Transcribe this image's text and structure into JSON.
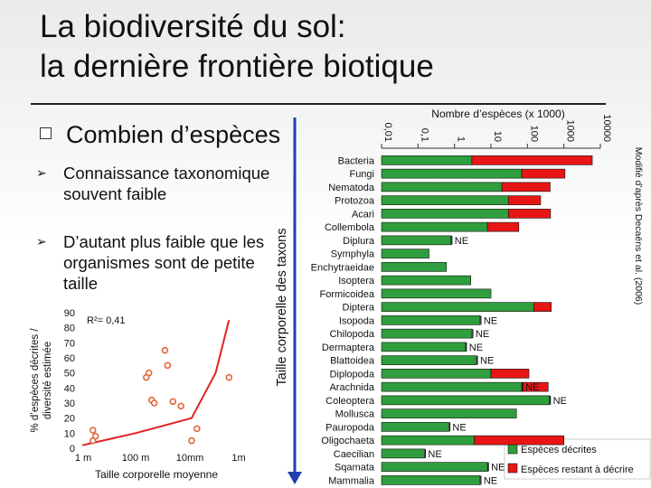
{
  "slide": {
    "title_line1": "La biodiversité du sol:",
    "title_line2": "la dernière frontière biotique",
    "main_bullet": "Combien d’espèces",
    "sub_bullets": [
      {
        "text": "Connaissance taxonomique souvent faible"
      },
      {
        "text": "D’autant plus faible que les organismes sont de petite taille"
      }
    ]
  },
  "chart_data": [
    {
      "type": "scatter",
      "ylabel_line1": "% d’espèces décrites /",
      "ylabel_line2": "diversité estimée",
      "xlabel": "Taille corporelle moyenne",
      "annotation": "R²= 0,41",
      "x_ticks": [
        "1 m",
        "100 m",
        "10mm",
        "1m"
      ],
      "y_ticks": [
        "90",
        "80",
        "70",
        "60",
        "50",
        "40",
        "30",
        "20",
        "10",
        "0"
      ],
      "ylim": [
        0,
        90
      ],
      "points": [
        [
          -0.8,
          12
        ],
        [
          -0.75,
          8
        ],
        [
          -0.8,
          5
        ],
        [
          0.2,
          47
        ],
        [
          0.25,
          50
        ],
        [
          0.3,
          32
        ],
        [
          0.35,
          30
        ],
        [
          0.55,
          65
        ],
        [
          0.6,
          55
        ],
        [
          0.7,
          31
        ],
        [
          0.85,
          28
        ],
        [
          1.15,
          13
        ],
        [
          1.05,
          5
        ],
        [
          1.75,
          47
        ]
      ],
      "trend": [
        [
          -1.0,
          2
        ],
        [
          0.0,
          10
        ],
        [
          1.05,
          20
        ],
        [
          1.5,
          50
        ],
        [
          1.75,
          85
        ]
      ],
      "colors": {
        "point": "#e06030",
        "line": "#e02020"
      }
    },
    {
      "type": "bar",
      "title": "Nombre d’espèces (x 1000)",
      "vertical_label": "Taille corporelle des taxons",
      "x_ticks": [
        "0,01",
        "0,1",
        "1",
        "10",
        "100",
        "1000",
        "10000"
      ],
      "categories": [
        "Bacteria",
        "Fungi",
        "Nematoda",
        "Protozoa",
        "Acari",
        "Collembola",
        "Diplura",
        "Symphyla",
        "Enchytraeidae",
        "Isoptera",
        "Formicoidea",
        "Diptera",
        "Isopoda",
        "Chilopoda",
        "Dermaptera",
        "Blattoidea",
        "Diplopoda",
        "Arachnida",
        "Coleoptera",
        "Mollusca",
        "Pauropoda",
        "Oligochaeta",
        "Caecilian",
        "Sqamata",
        "Mammalia"
      ],
      "series": [
        {
          "name": "Espèces décrites",
          "values": [
            3,
            70,
            20,
            30,
            30,
            8,
            0.8,
            0.2,
            0.6,
            2.8,
            10,
            150,
            5,
            3,
            2,
            4,
            10,
            70,
            400,
            50,
            0.7,
            3.5,
            0.15,
            8,
            5
          ]
        },
        {
          "name": "Espèces restant à décrire",
          "values": [
            6000,
            1000,
            400,
            200,
            400,
            50,
            null,
            null,
            null,
            null,
            null,
            300,
            null,
            null,
            null,
            null,
            100,
            300,
            null,
            null,
            null,
            1000,
            null,
            null,
            null
          ]
        }
      ],
      "annotations": [
        "",
        "",
        "",
        "",
        "",
        "",
        "NE",
        "",
        "",
        "",
        "",
        "",
        "NE",
        "NE",
        "NE",
        "NE",
        "",
        "NE",
        "NE",
        "",
        "NE",
        "",
        "NE",
        "NE",
        "NE"
      ],
      "xlim_log": [
        -2,
        4
      ],
      "side_note": "Modifié d’après Decaëns et al. (2006)",
      "colors": {
        "described": "#2f9e3e",
        "remaining": "#e81515"
      }
    }
  ]
}
